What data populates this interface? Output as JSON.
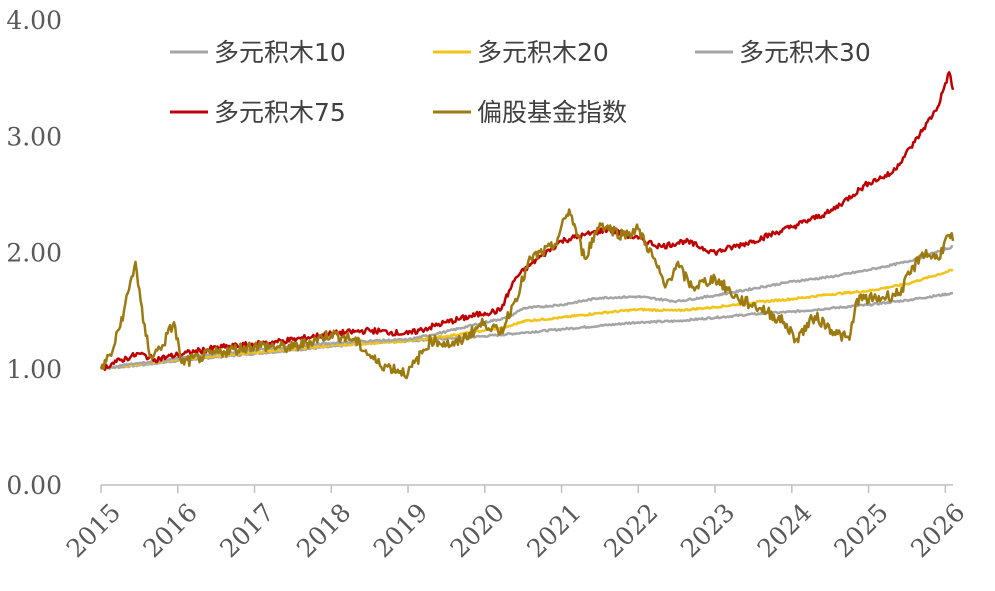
{
  "chart_data": {
    "type": "line",
    "title": "",
    "xlabel": "",
    "ylabel": "",
    "x_ticks": [
      "2015",
      "2016",
      "2017",
      "2018",
      "2019",
      "2020",
      "2021",
      "2022",
      "2023",
      "2024",
      "2025",
      "2026"
    ],
    "y_ticks": [
      "0.00",
      "1.00",
      "2.00",
      "3.00",
      "4.00"
    ],
    "xlim": [
      2015.0,
      2026.1
    ],
    "ylim": [
      0,
      4
    ],
    "grid": false,
    "legend_position": "top",
    "series": [
      {
        "name": "多元积木10",
        "color": "#A5A5A5",
        "points": [
          [
            2015.0,
            1.0
          ],
          [
            2015.5,
            1.03
          ],
          [
            2016.0,
            1.07
          ],
          [
            2016.5,
            1.1
          ],
          [
            2017.0,
            1.13
          ],
          [
            2017.5,
            1.16
          ],
          [
            2018.0,
            1.19
          ],
          [
            2018.5,
            1.22
          ],
          [
            2019.0,
            1.24
          ],
          [
            2019.5,
            1.26
          ],
          [
            2020.0,
            1.28
          ],
          [
            2020.5,
            1.31
          ],
          [
            2021.0,
            1.34
          ],
          [
            2021.5,
            1.37
          ],
          [
            2022.0,
            1.4
          ],
          [
            2022.5,
            1.41
          ],
          [
            2023.0,
            1.44
          ],
          [
            2023.5,
            1.47
          ],
          [
            2024.0,
            1.49
          ],
          [
            2024.5,
            1.52
          ],
          [
            2025.0,
            1.55
          ],
          [
            2025.5,
            1.59
          ],
          [
            2026.1,
            1.65
          ]
        ]
      },
      {
        "name": "多元积木20",
        "color": "#F2C318",
        "points": [
          [
            2015.0,
            1.0
          ],
          [
            2015.5,
            1.04
          ],
          [
            2016.0,
            1.08
          ],
          [
            2016.5,
            1.11
          ],
          [
            2017.0,
            1.14
          ],
          [
            2017.5,
            1.17
          ],
          [
            2018.0,
            1.2
          ],
          [
            2018.5,
            1.22
          ],
          [
            2019.0,
            1.24
          ],
          [
            2019.5,
            1.28
          ],
          [
            2020.0,
            1.33
          ],
          [
            2020.3,
            1.36
          ],
          [
            2020.5,
            1.41
          ],
          [
            2021.0,
            1.44
          ],
          [
            2021.5,
            1.48
          ],
          [
            2022.0,
            1.51
          ],
          [
            2022.5,
            1.5
          ],
          [
            2023.0,
            1.53
          ],
          [
            2023.5,
            1.57
          ],
          [
            2024.0,
            1.6
          ],
          [
            2024.5,
            1.64
          ],
          [
            2025.0,
            1.67
          ],
          [
            2025.5,
            1.73
          ],
          [
            2026.1,
            1.85
          ]
        ]
      },
      {
        "name": "多元积木30",
        "color": "#A5A5A5",
        "points": [
          [
            2015.0,
            1.0
          ],
          [
            2015.5,
            1.05
          ],
          [
            2016.0,
            1.09
          ],
          [
            2016.5,
            1.13
          ],
          [
            2017.0,
            1.16
          ],
          [
            2017.5,
            1.19
          ],
          [
            2018.0,
            1.22
          ],
          [
            2018.5,
            1.24
          ],
          [
            2019.0,
            1.25
          ],
          [
            2019.5,
            1.32
          ],
          [
            2020.0,
            1.4
          ],
          [
            2020.3,
            1.44
          ],
          [
            2020.5,
            1.52
          ],
          [
            2021.0,
            1.55
          ],
          [
            2021.5,
            1.61
          ],
          [
            2022.0,
            1.62
          ],
          [
            2022.5,
            1.58
          ],
          [
            2023.0,
            1.63
          ],
          [
            2023.5,
            1.69
          ],
          [
            2024.0,
            1.75
          ],
          [
            2024.5,
            1.79
          ],
          [
            2025.0,
            1.85
          ],
          [
            2025.5,
            1.92
          ],
          [
            2026.1,
            2.05
          ]
        ]
      },
      {
        "name": "多元积木75",
        "color": "#C00000",
        "points": [
          [
            2015.0,
            1.0
          ],
          [
            2015.2,
            1.06
          ],
          [
            2015.5,
            1.13
          ],
          [
            2015.7,
            1.08
          ],
          [
            2016.0,
            1.12
          ],
          [
            2016.5,
            1.18
          ],
          [
            2017.0,
            1.21
          ],
          [
            2017.5,
            1.25
          ],
          [
            2018.0,
            1.3
          ],
          [
            2018.5,
            1.33
          ],
          [
            2019.0,
            1.3
          ],
          [
            2019.5,
            1.4
          ],
          [
            2020.0,
            1.48
          ],
          [
            2020.2,
            1.5
          ],
          [
            2020.4,
            1.78
          ],
          [
            2020.6,
            1.9
          ],
          [
            2021.0,
            2.1
          ],
          [
            2021.3,
            2.15
          ],
          [
            2021.6,
            2.2
          ],
          [
            2022.0,
            2.12
          ],
          [
            2022.3,
            2.05
          ],
          [
            2022.6,
            2.1
          ],
          [
            2023.0,
            2.0
          ],
          [
            2023.5,
            2.1
          ],
          [
            2024.0,
            2.22
          ],
          [
            2024.5,
            2.35
          ],
          [
            2025.0,
            2.6
          ],
          [
            2025.3,
            2.68
          ],
          [
            2025.6,
            2.95
          ],
          [
            2025.9,
            3.25
          ],
          [
            2026.05,
            3.55
          ],
          [
            2026.1,
            3.4
          ]
        ]
      },
      {
        "name": "偏股基金指数",
        "color": "#9C7A0F",
        "points": [
          [
            2015.0,
            1.0
          ],
          [
            2015.15,
            1.15
          ],
          [
            2015.3,
            1.5
          ],
          [
            2015.45,
            1.92
          ],
          [
            2015.55,
            1.4
          ],
          [
            2015.65,
            1.1
          ],
          [
            2015.8,
            1.2
          ],
          [
            2015.95,
            1.4
          ],
          [
            2016.05,
            1.05
          ],
          [
            2016.3,
            1.1
          ],
          [
            2016.6,
            1.15
          ],
          [
            2017.0,
            1.2
          ],
          [
            2017.5,
            1.18
          ],
          [
            2018.0,
            1.3
          ],
          [
            2018.3,
            1.25
          ],
          [
            2018.6,
            1.05
          ],
          [
            2019.0,
            0.96
          ],
          [
            2019.3,
            1.25
          ],
          [
            2019.6,
            1.2
          ],
          [
            2020.0,
            1.4
          ],
          [
            2020.2,
            1.3
          ],
          [
            2020.4,
            1.6
          ],
          [
            2020.6,
            1.95
          ],
          [
            2020.9,
            2.05
          ],
          [
            2021.1,
            2.37
          ],
          [
            2021.3,
            1.95
          ],
          [
            2021.5,
            2.25
          ],
          [
            2021.8,
            2.15
          ],
          [
            2022.0,
            2.2
          ],
          [
            2022.2,
            1.95
          ],
          [
            2022.35,
            1.7
          ],
          [
            2022.5,
            1.9
          ],
          [
            2022.7,
            1.7
          ],
          [
            2023.0,
            1.78
          ],
          [
            2023.3,
            1.6
          ],
          [
            2023.6,
            1.52
          ],
          [
            2023.9,
            1.4
          ],
          [
            2024.05,
            1.25
          ],
          [
            2024.3,
            1.45
          ],
          [
            2024.6,
            1.3
          ],
          [
            2024.75,
            1.25
          ],
          [
            2024.85,
            1.6
          ],
          [
            2025.1,
            1.6
          ],
          [
            2025.4,
            1.65
          ],
          [
            2025.7,
            2.0
          ],
          [
            2025.9,
            1.95
          ],
          [
            2026.05,
            2.15
          ],
          [
            2026.1,
            2.1
          ]
        ]
      }
    ]
  }
}
